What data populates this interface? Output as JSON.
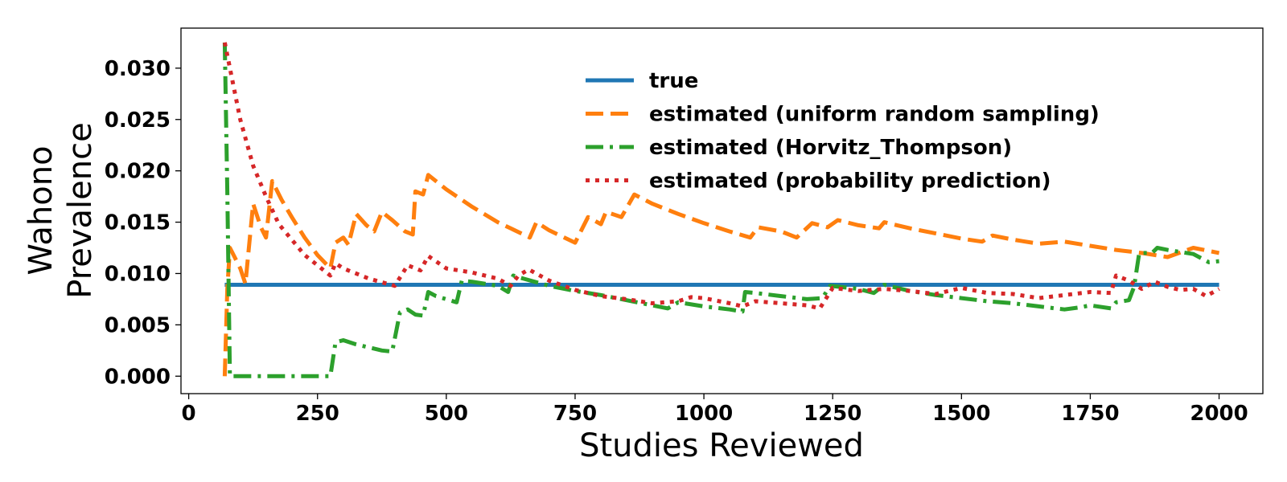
{
  "chart_data": {
    "type": "line",
    "xlabel": "Studies Reviewed",
    "ylabel": [
      "Wahono",
      "Prevalence"
    ],
    "xlim": [
      -15,
      2085
    ],
    "ylim": [
      -0.0017,
      0.0339
    ],
    "xticks": [
      0,
      250,
      500,
      750,
      1000,
      1250,
      1500,
      1750,
      2000
    ],
    "xtick_labels": [
      "0",
      "250",
      "500",
      "750",
      "1000",
      "1250",
      "1500",
      "1750",
      "2000"
    ],
    "yticks": [
      0.0,
      0.005,
      0.01,
      0.015,
      0.02,
      0.025,
      0.03
    ],
    "ytick_labels": [
      "0.000",
      "0.005",
      "0.010",
      "0.015",
      "0.020",
      "0.025",
      "0.030"
    ],
    "grid": false,
    "legend_position": "upper-center",
    "series": [
      {
        "name": "true",
        "color": "#1f77b4",
        "dash": "solid",
        "points": [
          [
            70,
            0.0089
          ],
          [
            2000,
            0.0089
          ]
        ]
      },
      {
        "name": "estimated (uniform random sampling)",
        "color": "#ff7f0e",
        "dash": "dashed",
        "points": [
          [
            70,
            0.0
          ],
          [
            75,
            0.0085
          ],
          [
            80,
            0.0125
          ],
          [
            90,
            0.0115
          ],
          [
            100,
            0.0105
          ],
          [
            110,
            0.009
          ],
          [
            125,
            0.0168
          ],
          [
            140,
            0.0145
          ],
          [
            150,
            0.0135
          ],
          [
            162,
            0.019
          ],
          [
            180,
            0.0172
          ],
          [
            200,
            0.0155
          ],
          [
            225,
            0.0135
          ],
          [
            250,
            0.0118
          ],
          [
            275,
            0.0105
          ],
          [
            285,
            0.013
          ],
          [
            300,
            0.0135
          ],
          [
            310,
            0.0128
          ],
          [
            325,
            0.0158
          ],
          [
            345,
            0.0147
          ],
          [
            360,
            0.0141
          ],
          [
            375,
            0.016
          ],
          [
            395,
            0.0152
          ],
          [
            420,
            0.0141
          ],
          [
            435,
            0.0138
          ],
          [
            440,
            0.018
          ],
          [
            455,
            0.0177
          ],
          [
            465,
            0.0196
          ],
          [
            500,
            0.0182
          ],
          [
            550,
            0.0165
          ],
          [
            600,
            0.015
          ],
          [
            650,
            0.0138
          ],
          [
            662,
            0.0135
          ],
          [
            675,
            0.015
          ],
          [
            700,
            0.0142
          ],
          [
            750,
            0.013
          ],
          [
            775,
            0.0155
          ],
          [
            800,
            0.0148
          ],
          [
            810,
            0.016
          ],
          [
            840,
            0.0155
          ],
          [
            865,
            0.0177
          ],
          [
            900,
            0.0168
          ],
          [
            950,
            0.0158
          ],
          [
            1000,
            0.0149
          ],
          [
            1050,
            0.0141
          ],
          [
            1090,
            0.0135
          ],
          [
            1105,
            0.0145
          ],
          [
            1150,
            0.0141
          ],
          [
            1180,
            0.0135
          ],
          [
            1210,
            0.0149
          ],
          [
            1240,
            0.0145
          ],
          [
            1260,
            0.0152
          ],
          [
            1300,
            0.0147
          ],
          [
            1340,
            0.0144
          ],
          [
            1350,
            0.015
          ],
          [
            1400,
            0.0144
          ],
          [
            1450,
            0.0139
          ],
          [
            1500,
            0.0134
          ],
          [
            1540,
            0.0131
          ],
          [
            1560,
            0.0137
          ],
          [
            1600,
            0.0133
          ],
          [
            1650,
            0.0129
          ],
          [
            1700,
            0.0131
          ],
          [
            1750,
            0.0127
          ],
          [
            1800,
            0.0123
          ],
          [
            1850,
            0.012
          ],
          [
            1900,
            0.0116
          ],
          [
            1950,
            0.0125
          ],
          [
            2000,
            0.012
          ]
        ]
      },
      {
        "name": "estimated (Horvitz_Thompson)",
        "color": "#2ca02c",
        "dash": "dashdot",
        "points": [
          [
            70,
            0.0325
          ],
          [
            75,
            0.018
          ],
          [
            80,
            0.0
          ],
          [
            100,
            0.0
          ],
          [
            150,
            0.0
          ],
          [
            200,
            0.0
          ],
          [
            275,
            0.0
          ],
          [
            285,
            0.0033
          ],
          [
            300,
            0.0035
          ],
          [
            325,
            0.0031
          ],
          [
            350,
            0.0028
          ],
          [
            375,
            0.0025
          ],
          [
            395,
            0.0024
          ],
          [
            410,
            0.0062
          ],
          [
            425,
            0.0065
          ],
          [
            440,
            0.006
          ],
          [
            455,
            0.0059
          ],
          [
            465,
            0.0082
          ],
          [
            480,
            0.0078
          ],
          [
            520,
            0.0072
          ],
          [
            530,
            0.0093
          ],
          [
            550,
            0.0092
          ],
          [
            600,
            0.0088
          ],
          [
            620,
            0.0082
          ],
          [
            630,
            0.0098
          ],
          [
            650,
            0.0095
          ],
          [
            700,
            0.0088
          ],
          [
            750,
            0.0083
          ],
          [
            800,
            0.0079
          ],
          [
            850,
            0.0074
          ],
          [
            900,
            0.0069
          ],
          [
            930,
            0.0066
          ],
          [
            950,
            0.0072
          ],
          [
            1000,
            0.0068
          ],
          [
            1050,
            0.0065
          ],
          [
            1075,
            0.0063
          ],
          [
            1080,
            0.0082
          ],
          [
            1100,
            0.0081
          ],
          [
            1150,
            0.0078
          ],
          [
            1200,
            0.0075
          ],
          [
            1230,
            0.0076
          ],
          [
            1245,
            0.0088
          ],
          [
            1300,
            0.0085
          ],
          [
            1330,
            0.0081
          ],
          [
            1350,
            0.0089
          ],
          [
            1400,
            0.0083
          ],
          [
            1450,
            0.0079
          ],
          [
            1500,
            0.0076
          ],
          [
            1550,
            0.0073
          ],
          [
            1600,
            0.0071
          ],
          [
            1650,
            0.0068
          ],
          [
            1700,
            0.0065
          ],
          [
            1730,
            0.0067
          ],
          [
            1750,
            0.0069
          ],
          [
            1790,
            0.0066
          ],
          [
            1800,
            0.0072
          ],
          [
            1825,
            0.0074
          ],
          [
            1835,
            0.0087
          ],
          [
            1845,
            0.012
          ],
          [
            1870,
            0.012
          ],
          [
            1880,
            0.0125
          ],
          [
            1900,
            0.0123
          ],
          [
            1950,
            0.0119
          ],
          [
            1980,
            0.0111
          ],
          [
            2000,
            0.0112
          ]
        ]
      },
      {
        "name": "estimated (probability prediction)",
        "color": "#d62728",
        "dash": "dotted",
        "points": [
          [
            70,
            0.0325
          ],
          [
            100,
            0.025
          ],
          [
            125,
            0.0205
          ],
          [
            150,
            0.0175
          ],
          [
            175,
            0.0148
          ],
          [
            200,
            0.0133
          ],
          [
            225,
            0.0118
          ],
          [
            250,
            0.0108
          ],
          [
            275,
            0.0098
          ],
          [
            285,
            0.011
          ],
          [
            300,
            0.0105
          ],
          [
            350,
            0.0095
          ],
          [
            400,
            0.0088
          ],
          [
            425,
            0.0108
          ],
          [
            450,
            0.0103
          ],
          [
            465,
            0.0117
          ],
          [
            500,
            0.0105
          ],
          [
            550,
            0.0101
          ],
          [
            600,
            0.0095
          ],
          [
            625,
            0.0088
          ],
          [
            640,
            0.0098
          ],
          [
            660,
            0.0104
          ],
          [
            700,
            0.0093
          ],
          [
            750,
            0.0084
          ],
          [
            800,
            0.0078
          ],
          [
            850,
            0.0075
          ],
          [
            900,
            0.0071
          ],
          [
            950,
            0.0073
          ],
          [
            975,
            0.0077
          ],
          [
            1000,
            0.0076
          ],
          [
            1050,
            0.0071
          ],
          [
            1075,
            0.0068
          ],
          [
            1100,
            0.0073
          ],
          [
            1150,
            0.0071
          ],
          [
            1200,
            0.0069
          ],
          [
            1225,
            0.0066
          ],
          [
            1250,
            0.0086
          ],
          [
            1300,
            0.0083
          ],
          [
            1350,
            0.0085
          ],
          [
            1400,
            0.0083
          ],
          [
            1450,
            0.008
          ],
          [
            1500,
            0.0086
          ],
          [
            1550,
            0.0081
          ],
          [
            1600,
            0.008
          ],
          [
            1650,
            0.0076
          ],
          [
            1700,
            0.0079
          ],
          [
            1750,
            0.0082
          ],
          [
            1790,
            0.0081
          ],
          [
            1800,
            0.0098
          ],
          [
            1825,
            0.0093
          ],
          [
            1850,
            0.0085
          ],
          [
            1875,
            0.0092
          ],
          [
            1900,
            0.0087
          ],
          [
            1925,
            0.0084
          ],
          [
            1950,
            0.0085
          ],
          [
            1975,
            0.0078
          ],
          [
            2000,
            0.0085
          ]
        ]
      }
    ]
  }
}
